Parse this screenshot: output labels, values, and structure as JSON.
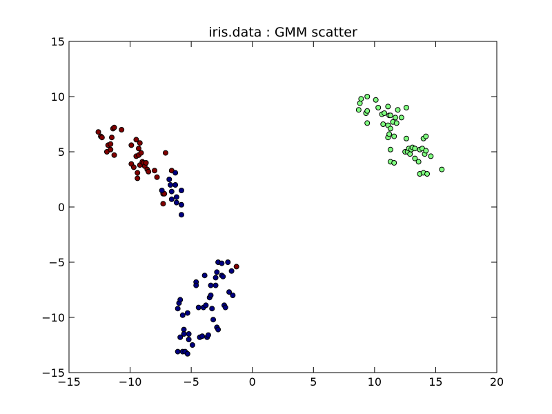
{
  "chart_data": {
    "type": "scatter",
    "title": "iris.data : GMM scatter",
    "xlabel": "",
    "ylabel": "",
    "xlim": [
      -15,
      20
    ],
    "ylim": [
      -15,
      15
    ],
    "x_ticks": [
      -15,
      -10,
      -5,
      0,
      5,
      10,
      15,
      20
    ],
    "y_ticks": [
      -15,
      -10,
      -5,
      0,
      5,
      10,
      15
    ],
    "x_tick_labels": [
      "−15",
      "−10",
      "−5",
      "0",
      "5",
      "10",
      "15",
      "20"
    ],
    "y_tick_labels": [
      "−15",
      "−10",
      "−5",
      "0",
      "5",
      "10",
      "15"
    ],
    "grid": false,
    "legend": "none",
    "series": [
      {
        "color": "#800000",
        "points": [
          [
            -12.6,
            6.8
          ],
          [
            -12.4,
            6.4
          ],
          [
            -12.3,
            6.3
          ],
          [
            -11.9,
            5.0
          ],
          [
            -11.8,
            5.6
          ],
          [
            -11.6,
            5.7
          ],
          [
            -11.6,
            5.2
          ],
          [
            -11.5,
            6.3
          ],
          [
            -11.4,
            7.1
          ],
          [
            -11.3,
            7.2
          ],
          [
            -11.3,
            4.7
          ],
          [
            -10.7,
            7.0
          ],
          [
            -9.9,
            5.6
          ],
          [
            -9.9,
            3.9
          ],
          [
            -9.7,
            3.6
          ],
          [
            -9.5,
            6.1
          ],
          [
            -9.5,
            4.6
          ],
          [
            -9.4,
            3.1
          ],
          [
            -9.4,
            2.6
          ],
          [
            -9.3,
            5.3
          ],
          [
            -9.3,
            4.7
          ],
          [
            -9.2,
            5.8
          ],
          [
            -9.2,
            3.8
          ],
          [
            -9.1,
            4.9
          ],
          [
            -9.0,
            4.1
          ],
          [
            -8.9,
            4.0
          ],
          [
            -8.8,
            3.7
          ],
          [
            -8.7,
            4.0
          ],
          [
            -8.6,
            3.4
          ],
          [
            -8.5,
            3.2
          ],
          [
            -8.0,
            3.3
          ],
          [
            -7.8,
            2.7
          ],
          [
            -7.3,
            1.2
          ],
          [
            -7.2,
            1.2
          ],
          [
            -7.1,
            4.9
          ],
          [
            -6.6,
            3.3
          ],
          [
            -7.3,
            0.3
          ],
          [
            -1.3,
            -5.4
          ]
        ]
      },
      {
        "color": "#000080",
        "points": [
          [
            -7.4,
            1.5
          ],
          [
            -6.8,
            2.5
          ],
          [
            -6.7,
            2.0
          ],
          [
            -6.6,
            1.4
          ],
          [
            -6.6,
            0.7
          ],
          [
            -6.3,
            3.1
          ],
          [
            -6.3,
            2.0
          ],
          [
            -6.2,
            0.9
          ],
          [
            -6.2,
            0.4
          ],
          [
            -5.8,
            1.5
          ],
          [
            -5.8,
            0.2
          ],
          [
            -5.8,
            -0.7
          ],
          [
            -6.1,
            -9.2
          ],
          [
            -6.0,
            -8.7
          ],
          [
            -5.9,
            -8.4
          ],
          [
            -5.7,
            -9.8
          ],
          [
            -5.6,
            -11.1
          ],
          [
            -5.6,
            -11.5
          ],
          [
            -5.9,
            -11.8
          ],
          [
            -6.1,
            -13.1
          ],
          [
            -5.7,
            -13.1
          ],
          [
            -5.5,
            -13.1
          ],
          [
            -5.3,
            -13.3
          ],
          [
            -5.2,
            -12.0
          ],
          [
            -5.2,
            -11.5
          ],
          [
            -5.3,
            -9.6
          ],
          [
            -4.9,
            -12.5
          ],
          [
            -4.6,
            -6.8
          ],
          [
            -4.6,
            -7.1
          ],
          [
            -4.4,
            -9.1
          ],
          [
            -4.3,
            -11.8
          ],
          [
            -4.1,
            -11.7
          ],
          [
            -4.0,
            -9.1
          ],
          [
            -3.9,
            -6.2
          ],
          [
            -3.8,
            -8.9
          ],
          [
            -3.7,
            -11.8
          ],
          [
            -3.6,
            -11.6
          ],
          [
            -3.5,
            -8.2
          ],
          [
            -3.4,
            -7.1
          ],
          [
            -3.4,
            -8.0
          ],
          [
            -3.3,
            -9.2
          ],
          [
            -3.2,
            -10.2
          ],
          [
            -3.0,
            -6.4
          ],
          [
            -3.0,
            -7.1
          ],
          [
            -2.9,
            -5.9
          ],
          [
            -2.9,
            -10.9
          ],
          [
            -2.8,
            -11.1
          ],
          [
            -2.8,
            -5.0
          ],
          [
            -2.5,
            -5.1
          ],
          [
            -2.5,
            -6.2
          ],
          [
            -2.4,
            -6.3
          ],
          [
            -2.3,
            -8.9
          ],
          [
            -2.2,
            -9.1
          ],
          [
            -2.0,
            -5.0
          ],
          [
            -1.9,
            -7.7
          ],
          [
            -1.7,
            -5.8
          ],
          [
            -1.6,
            -8.0
          ]
        ]
      },
      {
        "color": "#80ff80",
        "points": [
          [
            8.7,
            8.8
          ],
          [
            8.8,
            9.4
          ],
          [
            8.9,
            9.8
          ],
          [
            9.3,
            8.5
          ],
          [
            9.4,
            8.7
          ],
          [
            9.4,
            7.6
          ],
          [
            9.4,
            10.0
          ],
          [
            10.1,
            9.7
          ],
          [
            10.3,
            9.0
          ],
          [
            10.6,
            8.4
          ],
          [
            10.7,
            7.5
          ],
          [
            10.8,
            8.5
          ],
          [
            11.1,
            9.1
          ],
          [
            11.1,
            7.4
          ],
          [
            11.1,
            6.3
          ],
          [
            11.2,
            8.3
          ],
          [
            11.2,
            6.6
          ],
          [
            11.3,
            8.3
          ],
          [
            11.3,
            7.1
          ],
          [
            11.5,
            7.7
          ],
          [
            11.6,
            6.4
          ],
          [
            11.7,
            8.1
          ],
          [
            11.8,
            7.6
          ],
          [
            11.9,
            8.8
          ],
          [
            12.2,
            8.1
          ],
          [
            12.6,
            9.0
          ],
          [
            12.6,
            6.2
          ],
          [
            11.3,
            5.2
          ],
          [
            11.3,
            4.1
          ],
          [
            11.6,
            4.0
          ],
          [
            12.5,
            5.0
          ],
          [
            12.7,
            5.0
          ],
          [
            12.8,
            5.3
          ],
          [
            12.9,
            4.8
          ],
          [
            13.0,
            5.2
          ],
          [
            13.1,
            5.4
          ],
          [
            13.3,
            5.3
          ],
          [
            13.3,
            4.4
          ],
          [
            13.6,
            4.1
          ],
          [
            13.7,
            5.2
          ],
          [
            13.7,
            3.0
          ],
          [
            13.9,
            5.3
          ],
          [
            14.0,
            3.1
          ],
          [
            14.0,
            6.2
          ],
          [
            14.1,
            4.8
          ],
          [
            14.2,
            6.4
          ],
          [
            14.2,
            5.1
          ],
          [
            14.3,
            3.0
          ],
          [
            14.6,
            4.6
          ],
          [
            15.5,
            3.4
          ]
        ]
      }
    ]
  }
}
